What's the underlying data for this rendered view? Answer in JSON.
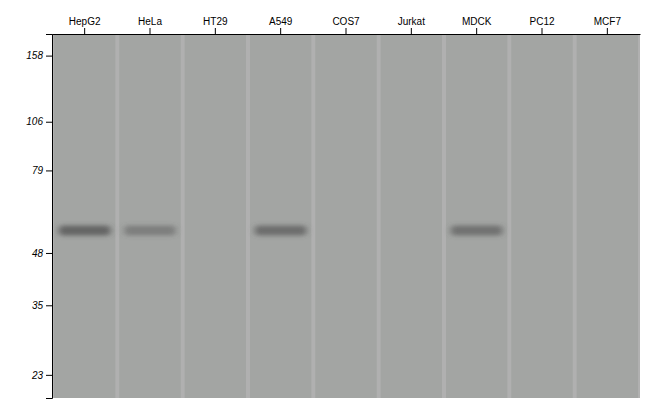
{
  "chart_data": {
    "type": "gel",
    "categories": [
      "HepG2",
      "HeLa",
      "HT29",
      "A549",
      "COS7",
      "Jurkat",
      "MDCK",
      "PC12",
      "MCF7"
    ],
    "values": [
      55,
      55,
      null,
      55,
      null,
      null,
      55,
      null,
      null
    ],
    "intensity": [
      0.75,
      0.45,
      null,
      0.65,
      null,
      null,
      0.6,
      null,
      null
    ],
    "color": "#505050",
    "log": "y",
    "ylim": [
      20,
      180
    ],
    "yticks": [
      158,
      106,
      79,
      48,
      35,
      23
    ]
  }
}
